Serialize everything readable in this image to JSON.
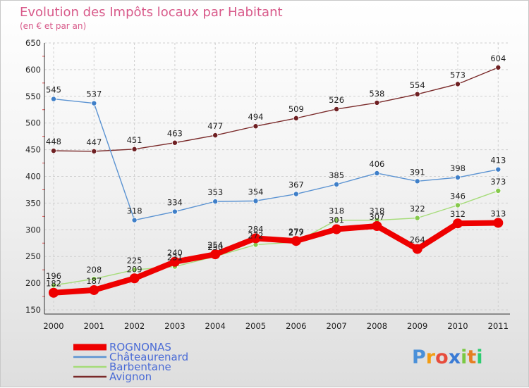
{
  "chart_data": {
    "type": "line",
    "title": "Evolution des Impôts locaux par Habitant",
    "subtitle": "(en € et par an)",
    "xlabel": "",
    "ylabel": "",
    "categories": [
      "2000",
      "2001",
      "2002",
      "2003",
      "2004",
      "2005",
      "2006",
      "2007",
      "2008",
      "2009",
      "2010",
      "2011"
    ],
    "ylim": [
      150,
      650
    ],
    "yticks": [
      150,
      200,
      250,
      300,
      350,
      400,
      450,
      500,
      550,
      600,
      650
    ],
    "grid": true,
    "legend_position": "bottom-left",
    "series": [
      {
        "name": "Avignon",
        "color": "#7a2a2a",
        "marker_color": "#6e1f22",
        "values": [
          448,
          447,
          451,
          463,
          477,
          494,
          509,
          526,
          538,
          554,
          573,
          604
        ],
        "labels": [
          "448",
          "447",
          "451",
          "463",
          "477",
          "494",
          "509",
          "526",
          "538",
          "554",
          "573",
          "604"
        ]
      },
      {
        "name": "Châteaurenard",
        "color": "#5b93d2",
        "marker_color": "#3f7fc8",
        "values": [
          545,
          537,
          318,
          334,
          353,
          354,
          367,
          385,
          406,
          391,
          398,
          413
        ],
        "labels": [
          "545",
          "537",
          "318",
          "334",
          "353",
          "354",
          "367",
          "385",
          "406",
          "391",
          "398",
          "413"
        ]
      },
      {
        "name": "Barbentane",
        "color": "#a6dc7a",
        "marker_color": "#86c94c",
        "values": [
          196,
          208,
          225,
          231,
          250,
          272,
          277,
          318,
          318,
          322,
          346,
          373
        ],
        "labels": [
          "196",
          "208",
          "225",
          "231",
          "250",
          "272",
          "277",
          "318",
          "318",
          "322",
          "346",
          "373"
        ]
      },
      {
        "name": "ROGNONAS",
        "color": "#ee0000",
        "marker_color": "#ee0000",
        "values": [
          182,
          187,
          209,
          240,
          254,
          284,
          279,
          301,
          307,
          264,
          312,
          313
        ],
        "labels": [
          "182",
          "187",
          "209",
          "240",
          "254",
          "284",
          "279",
          "301",
          "307",
          "264",
          "312",
          "313"
        ]
      }
    ],
    "legend": [
      "ROGNONAS",
      "Châteaurenard",
      "Barbentane",
      "Avignon"
    ]
  },
  "brand": {
    "letters": [
      "P",
      "r",
      "o",
      "x",
      "i",
      "t",
      "i"
    ],
    "colors": [
      "#4a90d9",
      "#f39c12",
      "#e74c3c",
      "#3a7bd5",
      "#7ac943",
      "#e67e22",
      "#2ecc71"
    ]
  }
}
